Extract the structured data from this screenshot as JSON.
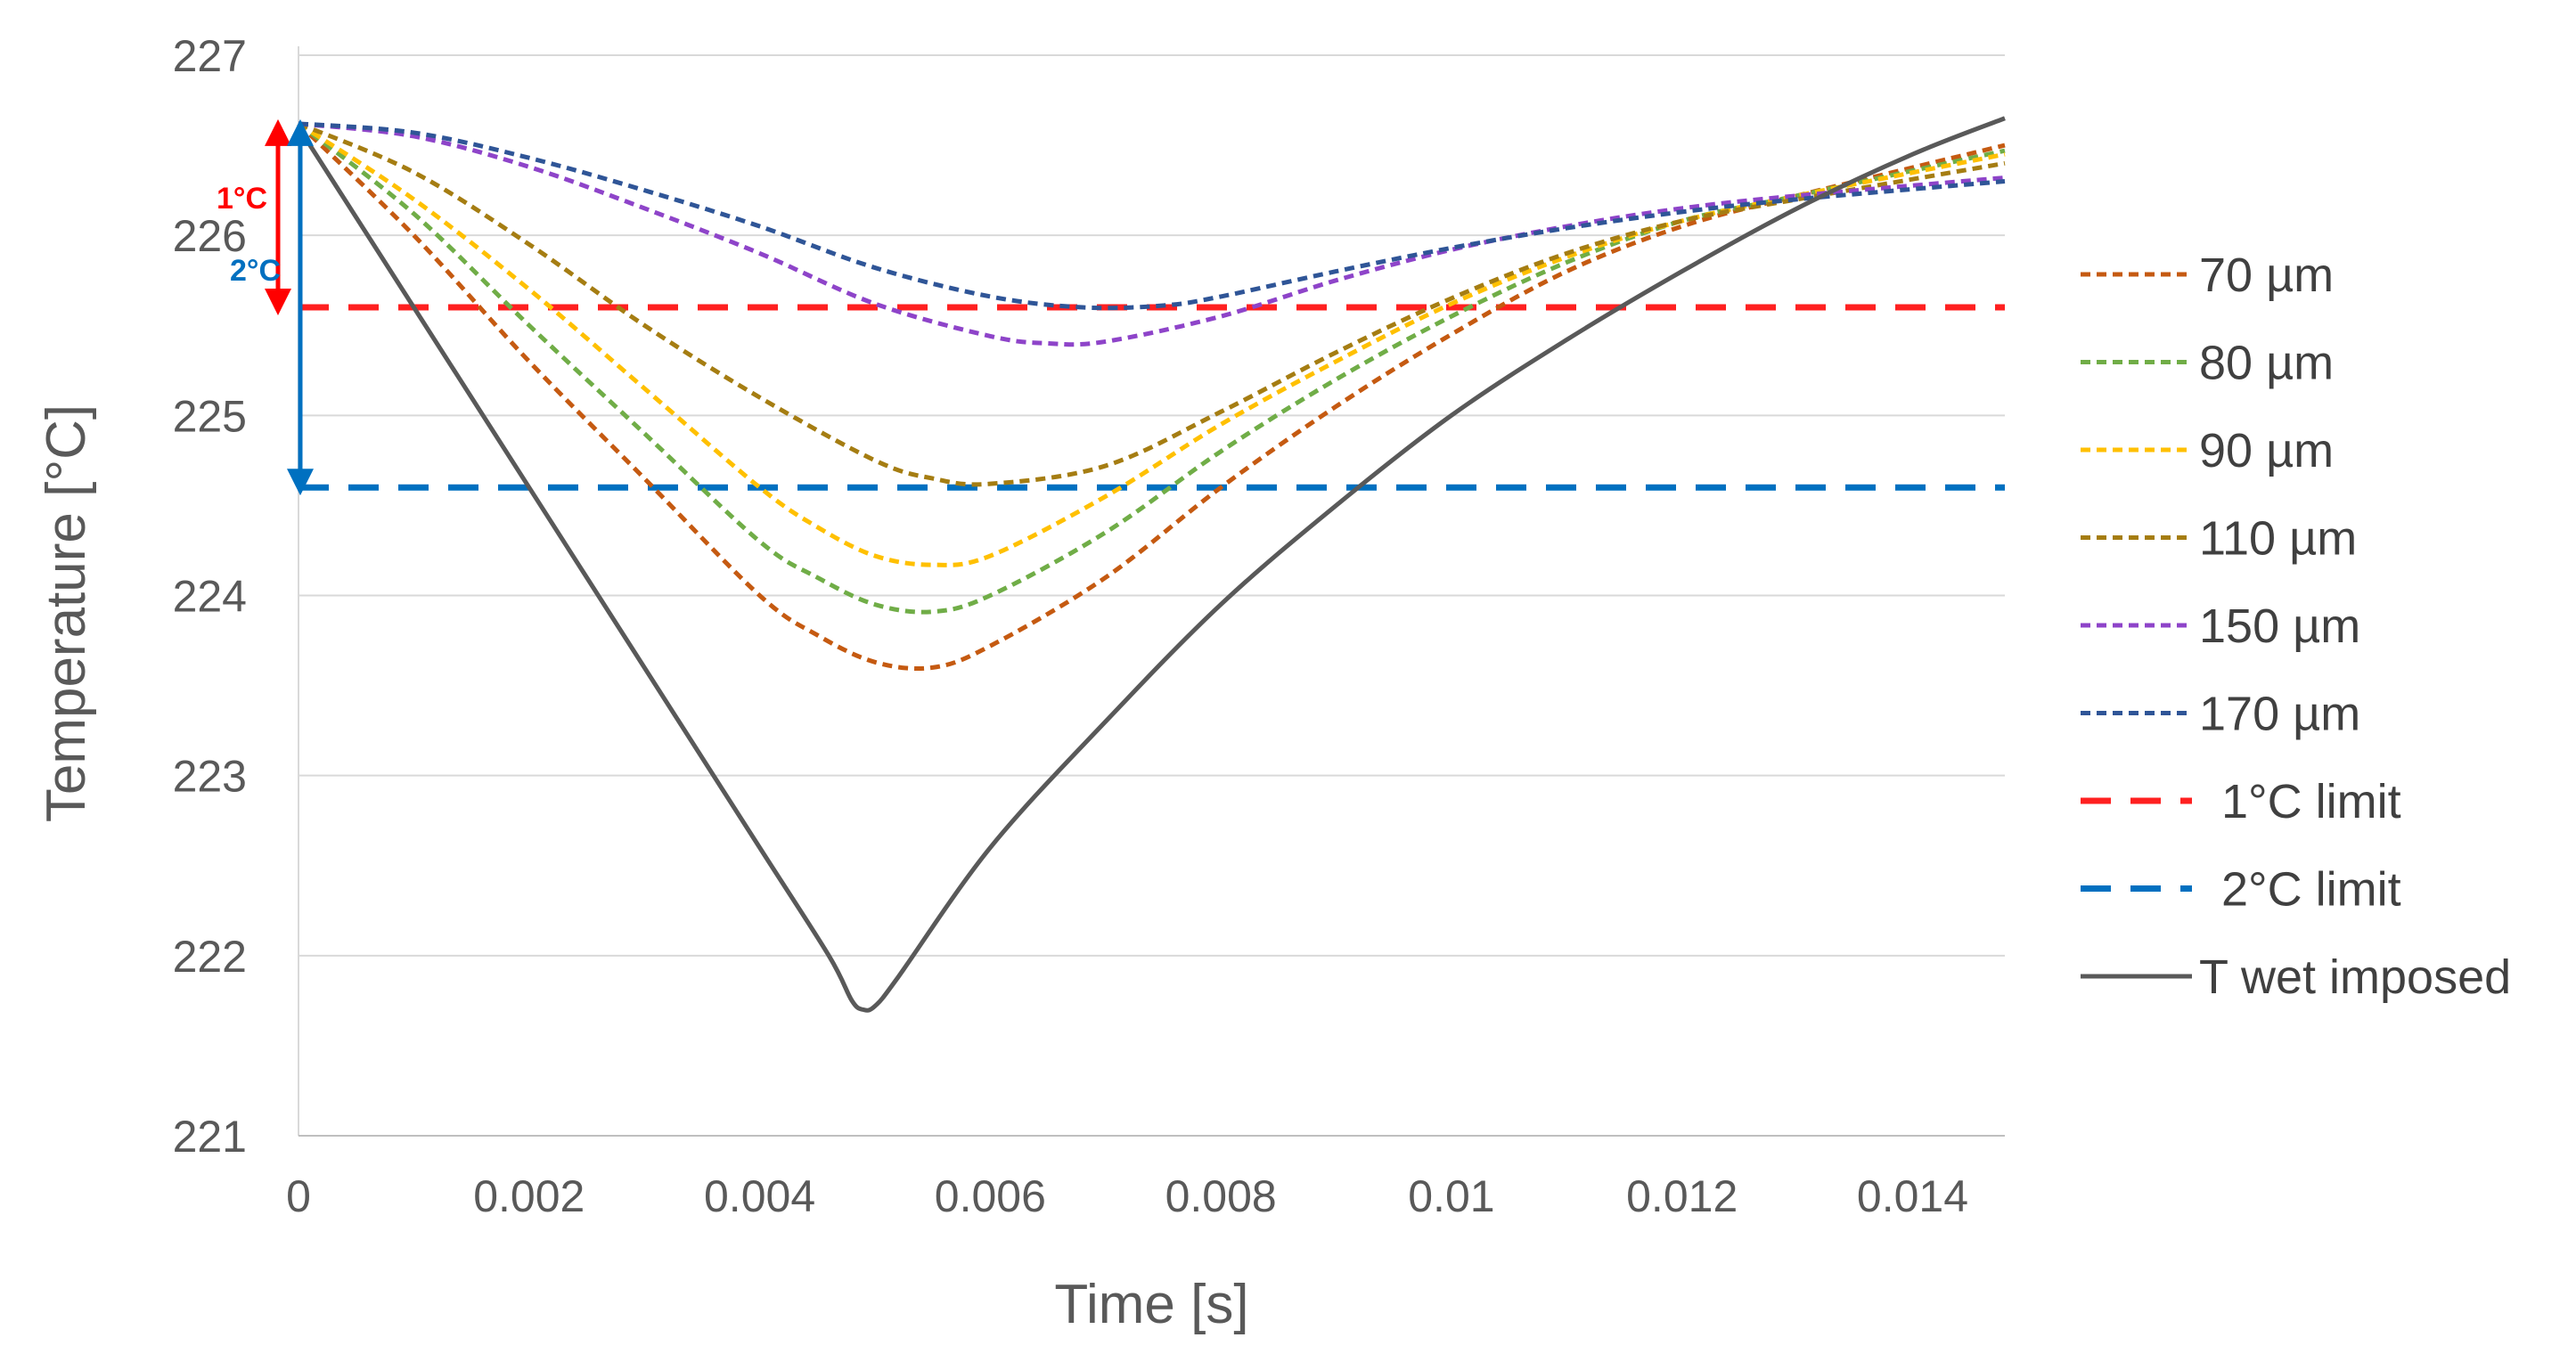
{
  "chart_data": {
    "type": "line",
    "title": "",
    "xlabel": "Time [s]",
    "ylabel": "Temperature [°C]",
    "xlim": [
      0,
      0.0148
    ],
    "ylim": [
      221,
      227
    ],
    "x_ticks": [
      0,
      0.002,
      0.004,
      0.006,
      0.008,
      0.01,
      0.012,
      0.014
    ],
    "x_tick_labels": [
      "0",
      "0.002",
      "0.004",
      "0.006",
      "0.008",
      "0.01",
      "0.012",
      "0.014"
    ],
    "y_ticks": [
      221,
      222,
      223,
      224,
      225,
      226,
      227
    ],
    "y_tick_labels": [
      "221",
      "222",
      "223",
      "224",
      "225",
      "226",
      "227"
    ],
    "grid": "horizontal",
    "legend_position": "right",
    "series": [
      {
        "name": "70 µm",
        "color": "#c55a11",
        "style": "dotted",
        "x": [
          0,
          0.001,
          0.002,
          0.003,
          0.004,
          0.0045,
          0.005,
          0.0055,
          0.006,
          0.007,
          0.008,
          0.009,
          0.01,
          0.011,
          0.012,
          0.013,
          0.0148
        ],
        "y": [
          226.62,
          226.0,
          225.3,
          224.65,
          224.0,
          223.78,
          223.63,
          223.6,
          223.72,
          224.1,
          224.6,
          225.05,
          225.45,
          225.8,
          226.05,
          226.22,
          226.5
        ]
      },
      {
        "name": "80 µm",
        "color": "#70ad47",
        "style": "dotted",
        "x": [
          0,
          0.001,
          0.002,
          0.003,
          0.004,
          0.0045,
          0.005,
          0.0055,
          0.006,
          0.007,
          0.008,
          0.009,
          0.01,
          0.011,
          0.012,
          0.013,
          0.0148
        ],
        "y": [
          226.62,
          226.12,
          225.5,
          224.9,
          224.3,
          224.1,
          223.95,
          223.91,
          224.0,
          224.35,
          224.8,
          225.2,
          225.55,
          225.85,
          226.08,
          226.22,
          226.47
        ]
      },
      {
        "name": "90 µm",
        "color": "#ffc000",
        "style": "dotted",
        "x": [
          0,
          0.001,
          0.002,
          0.003,
          0.004,
          0.0045,
          0.005,
          0.0055,
          0.006,
          0.007,
          0.008,
          0.009,
          0.01,
          0.011,
          0.012,
          0.013,
          0.0148
        ],
        "y": [
          226.62,
          226.2,
          225.7,
          225.15,
          224.6,
          224.38,
          224.22,
          224.17,
          224.22,
          224.55,
          224.95,
          225.3,
          225.62,
          225.88,
          226.08,
          226.22,
          226.45
        ]
      },
      {
        "name": "110 µm",
        "color": "#a57d12",
        "style": "dotted",
        "x": [
          0,
          0.001,
          0.002,
          0.003,
          0.004,
          0.005,
          0.0055,
          0.006,
          0.007,
          0.008,
          0.009,
          0.01,
          0.011,
          0.012,
          0.013,
          0.0148
        ],
        "y": [
          226.62,
          226.35,
          225.95,
          225.5,
          225.1,
          224.75,
          224.65,
          224.62,
          224.72,
          225.02,
          225.35,
          225.65,
          225.9,
          226.08,
          226.2,
          226.4
        ]
      },
      {
        "name": "150 µm",
        "color": "#8e44c9",
        "style": "dotted",
        "x": [
          0,
          0.001,
          0.002,
          0.003,
          0.004,
          0.005,
          0.006,
          0.0065,
          0.007,
          0.008,
          0.009,
          0.01,
          0.011,
          0.012,
          0.013,
          0.0148
        ],
        "y": [
          226.62,
          226.55,
          226.38,
          226.15,
          225.9,
          225.62,
          225.44,
          225.4,
          225.41,
          225.55,
          225.75,
          225.92,
          226.05,
          226.15,
          226.22,
          226.32
        ]
      },
      {
        "name": "170 µm",
        "color": "#2f5597",
        "style": "dotted",
        "x": [
          0,
          0.001,
          0.002,
          0.003,
          0.004,
          0.005,
          0.006,
          0.0068,
          0.0075,
          0.008,
          0.009,
          0.01,
          0.011,
          0.012,
          0.013,
          0.0148
        ],
        "y": [
          226.62,
          226.57,
          226.43,
          226.25,
          226.05,
          225.82,
          225.66,
          225.6,
          225.61,
          225.66,
          225.8,
          225.93,
          226.04,
          226.13,
          226.2,
          226.3
        ]
      },
      {
        "name": "1°C limit",
        "color": "#ff2020",
        "style": "dashed",
        "x": [
          0,
          0.0148
        ],
        "y": [
          225.6,
          225.6
        ]
      },
      {
        "name": "2°C limit",
        "color": "#0070c0",
        "style": "dashed",
        "x": [
          0,
          0.0148
        ],
        "y": [
          224.6,
          224.6
        ]
      },
      {
        "name": "T wet imposed",
        "color": "#595959",
        "style": "solid",
        "x": [
          0,
          0.001,
          0.002,
          0.003,
          0.004,
          0.0046,
          0.0048,
          0.0049,
          0.005,
          0.0052,
          0.006,
          0.007,
          0.008,
          0.009,
          0.01,
          0.011,
          0.012,
          0.013,
          0.014,
          0.0148
        ],
        "y": [
          226.6,
          225.6,
          224.6,
          223.6,
          222.6,
          222.0,
          221.75,
          221.7,
          221.72,
          221.88,
          222.6,
          223.3,
          223.95,
          224.5,
          225.0,
          225.42,
          225.8,
          226.15,
          226.45,
          226.65
        ]
      }
    ],
    "annotations": [
      {
        "text": "1°C",
        "color": "#ff0000",
        "from": 226.6,
        "to": 225.6
      },
      {
        "text": "2°C",
        "color": "#0070c0",
        "from": 226.6,
        "to": 224.6
      }
    ]
  }
}
